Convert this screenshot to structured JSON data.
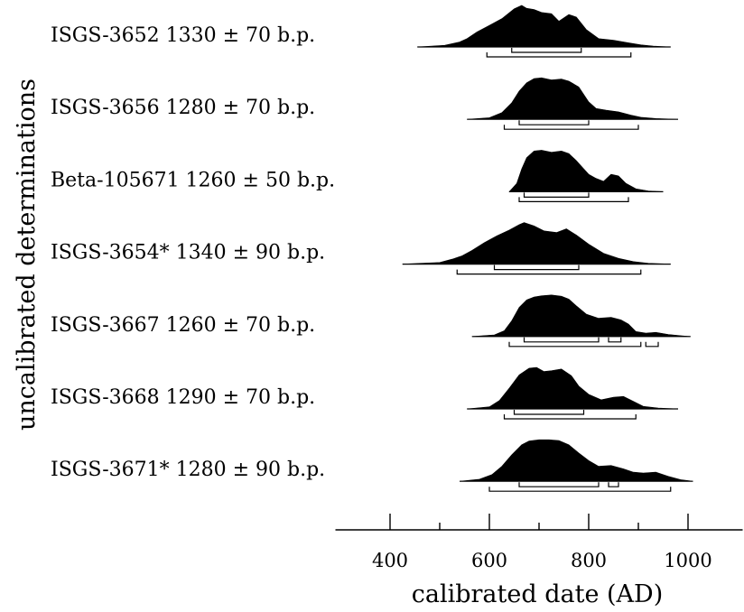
{
  "chart_data": {
    "type": "area",
    "title": "",
    "xlabel": "calibrated date (AD)",
    "ylabel": "uncalibrated determinations",
    "xlim": [
      290,
      1110
    ],
    "x_major_ticks": [
      400,
      600,
      800,
      1000
    ],
    "x_minor_ticks": [
      500,
      700,
      900
    ],
    "series": [
      {
        "name": "ISGS-3652  1330 ± 70 b.p.",
        "start": 455,
        "end": 965,
        "x": [
          455,
          510,
          540,
          555,
          575,
          600,
          625,
          650,
          665,
          675,
          690,
          705,
          725,
          740,
          760,
          775,
          795,
          820,
          850,
          880,
          905,
          930,
          965
        ],
        "y": [
          0,
          0.04,
          0.12,
          0.2,
          0.36,
          0.52,
          0.68,
          0.92,
          1.0,
          0.93,
          0.9,
          0.83,
          0.8,
          0.62,
          0.78,
          0.72,
          0.42,
          0.2,
          0.16,
          0.1,
          0.05,
          0.02,
          0
        ],
        "range_1sigma": [
          [
            645,
            785
          ]
        ],
        "range_2sigma": [
          [
            595,
            885
          ]
        ]
      },
      {
        "name": "ISGS-3656  1280 ± 70 b.p.",
        "start": 555,
        "end": 980,
        "x": [
          555,
          600,
          625,
          645,
          660,
          675,
          690,
          705,
          725,
          745,
          760,
          780,
          800,
          815,
          835,
          860,
          885,
          905,
          935,
          980
        ],
        "y": [
          0,
          0.04,
          0.16,
          0.4,
          0.68,
          0.88,
          0.98,
          1.0,
          0.95,
          0.97,
          0.92,
          0.78,
          0.42,
          0.26,
          0.22,
          0.18,
          0.1,
          0.05,
          0.02,
          0
        ],
        "range_1sigma": [
          [
            660,
            800
          ]
        ],
        "range_2sigma": [
          [
            630,
            900
          ]
        ]
      },
      {
        "name": "Beta-105671  1260 ± 50 b.p.",
        "start": 640,
        "end": 950,
        "x": [
          640,
          655,
          665,
          675,
          690,
          705,
          725,
          745,
          760,
          775,
          790,
          800,
          815,
          830,
          845,
          860,
          875,
          895,
          920,
          950
        ],
        "y": [
          0,
          0.2,
          0.55,
          0.82,
          0.98,
          1.0,
          0.95,
          0.98,
          0.92,
          0.75,
          0.55,
          0.42,
          0.32,
          0.25,
          0.42,
          0.38,
          0.2,
          0.07,
          0.02,
          0
        ],
        "range_1sigma": [
          [
            670,
            800
          ]
        ],
        "range_2sigma": [
          [
            660,
            880
          ]
        ]
      },
      {
        "name": "ISGS-3654*  1340 ± 90 b.p.",
        "start": 425,
        "end": 965,
        "x": [
          425,
          500,
          525,
          545,
          565,
          590,
          615,
          640,
          660,
          670,
          690,
          710,
          735,
          755,
          775,
          800,
          830,
          860,
          890,
          920,
          965
        ],
        "y": [
          0,
          0.04,
          0.12,
          0.2,
          0.33,
          0.52,
          0.68,
          0.82,
          0.95,
          1.0,
          0.92,
          0.8,
          0.76,
          0.85,
          0.7,
          0.48,
          0.26,
          0.14,
          0.06,
          0.02,
          0
        ],
        "range_1sigma": [
          [
            610,
            780
          ]
        ],
        "range_2sigma": [
          [
            535,
            905
          ]
        ]
      },
      {
        "name": "ISGS-3667  1260 ± 70 b.p.",
        "start": 565,
        "end": 1005,
        "x": [
          565,
          610,
          630,
          645,
          660,
          675,
          690,
          705,
          725,
          745,
          760,
          775,
          795,
          820,
          845,
          865,
          880,
          895,
          915,
          935,
          960,
          985,
          1005
        ],
        "y": [
          0,
          0.04,
          0.14,
          0.38,
          0.7,
          0.88,
          0.95,
          0.98,
          1.0,
          0.97,
          0.9,
          0.74,
          0.54,
          0.44,
          0.46,
          0.4,
          0.3,
          0.12,
          0.08,
          0.1,
          0.05,
          0.02,
          0
        ],
        "range_1sigma": [
          [
            670,
            820
          ],
          [
            840,
            865
          ]
        ],
        "range_2sigma": [
          [
            640,
            905
          ],
          [
            915,
            940
          ]
        ]
      },
      {
        "name": "ISGS-3668  1290 ± 70 b.p.",
        "start": 555,
        "end": 980,
        "x": [
          555,
          600,
          620,
          640,
          660,
          680,
          695,
          710,
          725,
          745,
          765,
          780,
          800,
          825,
          850,
          870,
          890,
          910,
          940,
          980
        ],
        "y": [
          0,
          0.05,
          0.2,
          0.5,
          0.82,
          0.98,
          1.0,
          0.9,
          0.92,
          0.96,
          0.8,
          0.55,
          0.35,
          0.22,
          0.28,
          0.3,
          0.18,
          0.06,
          0.02,
          0
        ],
        "range_1sigma": [
          [
            650,
            790
          ]
        ],
        "range_2sigma": [
          [
            630,
            895
          ]
        ]
      },
      {
        "name": "ISGS-3671*  1280 ± 90 b.p.",
        "start": 540,
        "end": 1010,
        "x": [
          540,
          580,
          605,
          625,
          645,
          665,
          680,
          700,
          720,
          740,
          760,
          780,
          800,
          820,
          845,
          870,
          890,
          910,
          935,
          960,
          985,
          1010
        ],
        "y": [
          0,
          0.05,
          0.16,
          0.36,
          0.64,
          0.88,
          0.97,
          1.0,
          1.0,
          0.98,
          0.88,
          0.68,
          0.5,
          0.36,
          0.38,
          0.3,
          0.22,
          0.2,
          0.22,
          0.12,
          0.04,
          0
        ],
        "range_1sigma": [
          [
            660,
            820
          ],
          [
            840,
            860
          ]
        ],
        "range_2sigma": [
          [
            600,
            965
          ]
        ]
      }
    ]
  }
}
